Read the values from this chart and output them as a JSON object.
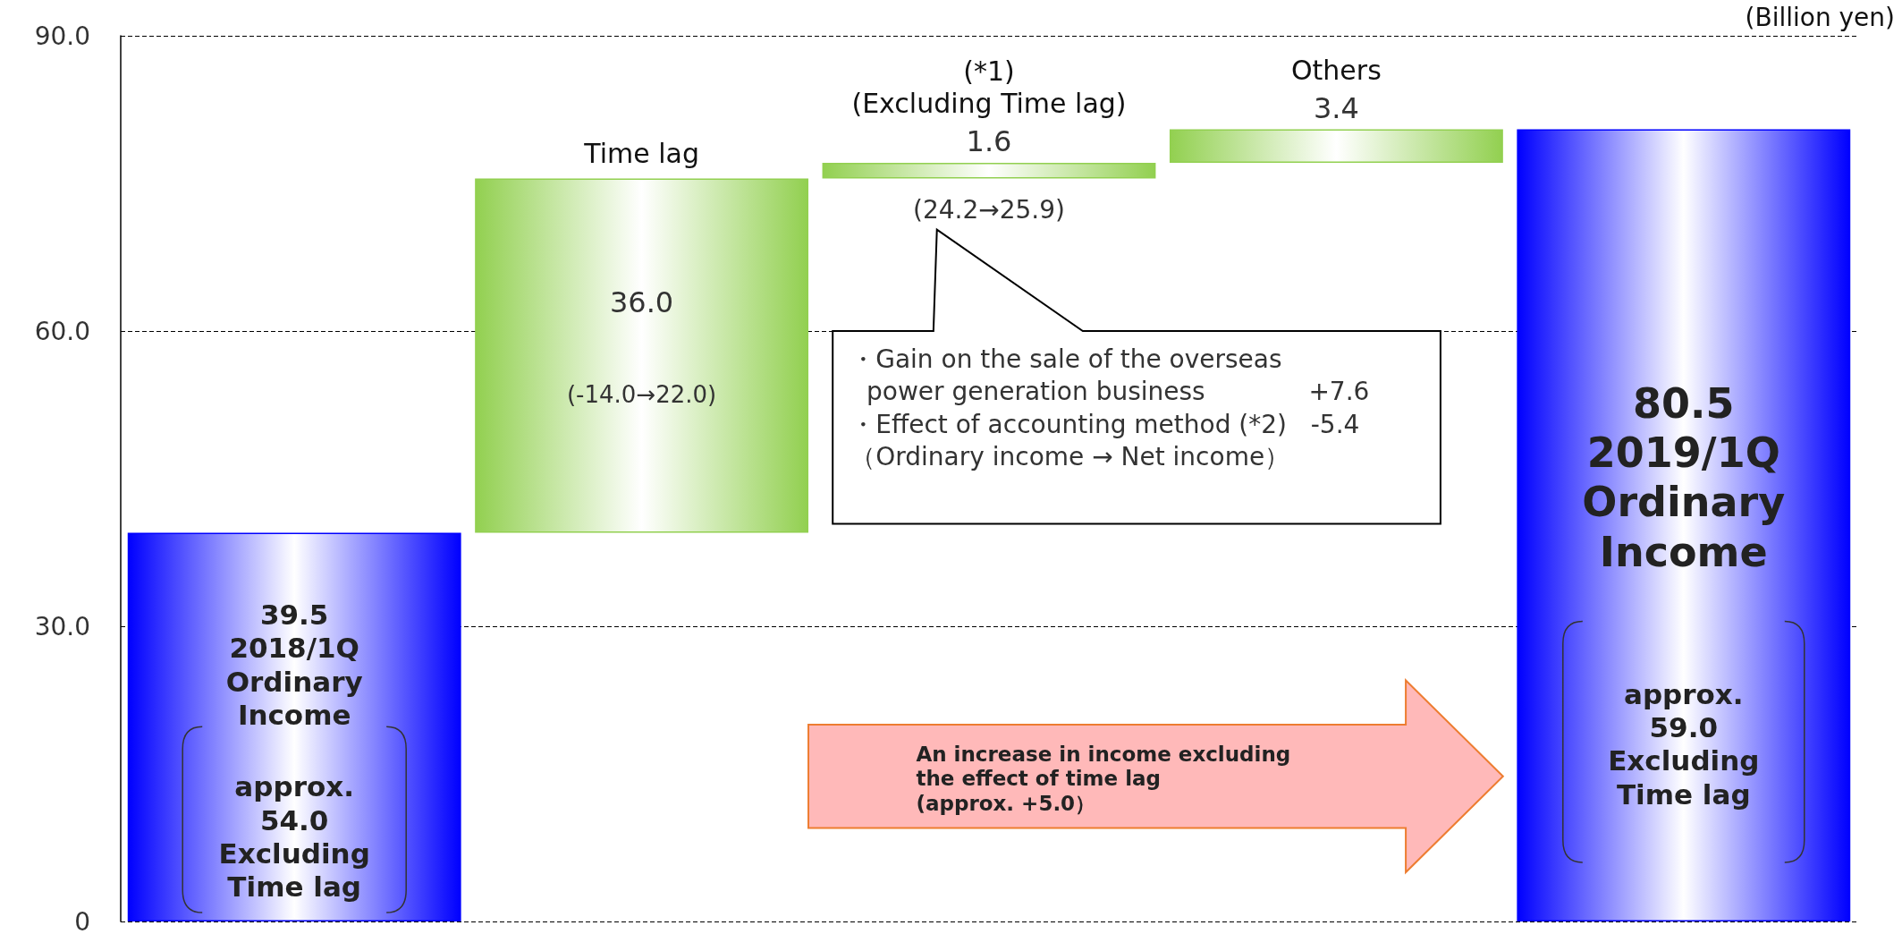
{
  "chart_data": {
    "type": "bar",
    "categories": [
      "2018/1Q\nOrdinary\nIncome",
      "Time lag",
      "(*1)\n(Excluding Time lag)",
      "Others",
      "2019/1Q\nOrdinary\nIncome"
    ],
    "values": [
      39.5,
      36.0,
      1.6,
      3.4,
      80.5
    ],
    "base": [
      0,
      39.5,
      75.5,
      77.1,
      0
    ],
    "colors": [
      "#0000ff",
      "#92d050",
      "#92d050",
      "#92d050",
      "#0000ff"
    ],
    "value_labels": [
      "39.5",
      "36.0",
      "1.6",
      "3.4",
      "80.5"
    ],
    "ylim": [
      0,
      90
    ],
    "yticks": [
      0,
      {
        "value": 30,
        "label": "30.0"
      },
      {
        "value": 60,
        "label": "60.0"
      },
      {
        "value": 90,
        "label": "90.0"
      }
    ],
    "grid": "y",
    "annotations": [
      "approx.\n54.0\nExcluding\nTime lag",
      "(-14.0→22.0)",
      "(24.2→25.9)",
      "・Gain on the sale of the overseas\n  power generation business             +7.6\n・Effect of accounting method (*2)   -5.4\n（Ordinary income → Net income）",
      "approx.\n59.0\nExcluding\nTime lag",
      "An increase in income excluding\nthe effect of time lag\n(approx. +5.0）",
      "(Billion yen)"
    ]
  }
}
